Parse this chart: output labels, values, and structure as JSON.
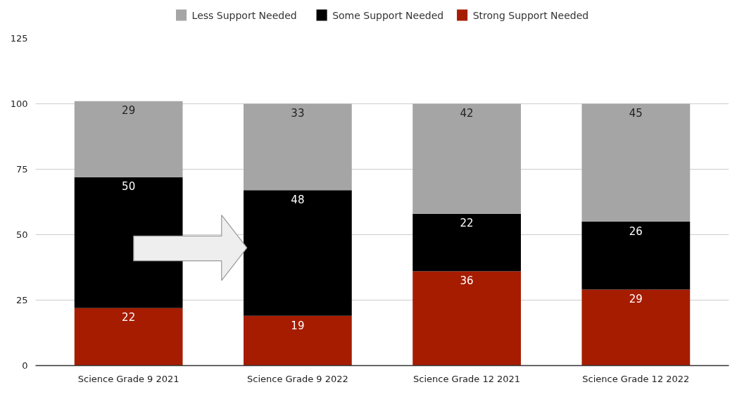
{
  "chart_data": {
    "type": "bar",
    "stacked": true,
    "categories": [
      "Science Grade 9 2021",
      "Science Grade 9 2022",
      "Science Grade 12 2021",
      "Science Grade 12 2022"
    ],
    "series": [
      {
        "name": "Strong Support Needed",
        "color": "#a61c00",
        "values": [
          22,
          19,
          36,
          29
        ]
      },
      {
        "name": "Some Support Needed",
        "color": "#000000",
        "values": [
          50,
          48,
          22,
          26
        ]
      },
      {
        "name": "Less Support Needed",
        "color": "#a5a5a5",
        "values": [
          29,
          33,
          42,
          45
        ]
      }
    ],
    "ylim": [
      0,
      125
    ],
    "yticks": [
      0,
      25,
      50,
      75,
      100,
      125
    ],
    "grid": "y",
    "legend": "top",
    "data_labels": true
  }
}
